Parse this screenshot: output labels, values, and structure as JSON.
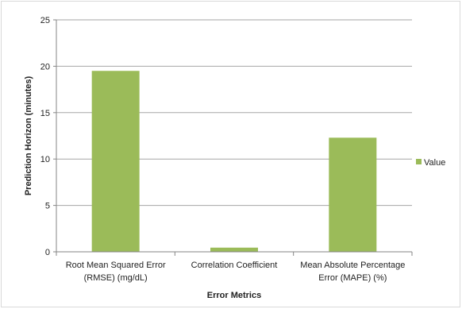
{
  "chart_data": {
    "type": "bar",
    "title": "",
    "categories": [
      [
        "Root Mean Squared Error",
        "(RMSE) (mg/dL)"
      ],
      [
        "Correlation Coefficient"
      ],
      [
        "Mean Absolute Percentage",
        "Error (MAPE) (%)"
      ]
    ],
    "series": [
      {
        "name": "Value",
        "values": [
          19.5,
          0.45,
          12.3
        ],
        "color": "#9bbb59"
      }
    ],
    "xlabel": "Error Metrics",
    "ylabel": "Prediction Horizon (minutes)",
    "ylim": [
      0,
      25
    ],
    "yticks": [
      0,
      5,
      10,
      15,
      20,
      25
    ],
    "grid": true,
    "legend_position": "right"
  }
}
